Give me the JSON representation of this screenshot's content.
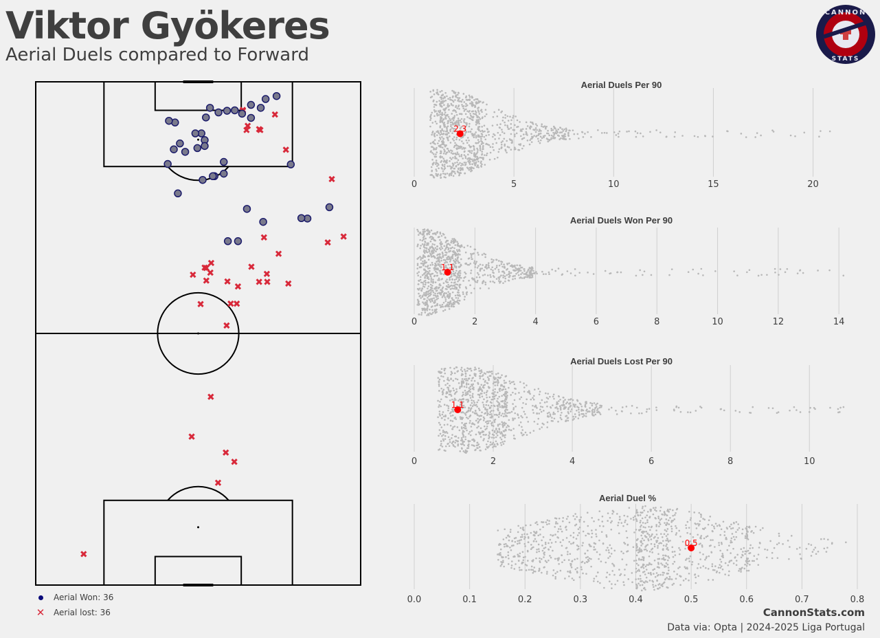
{
  "header": {
    "title": "Viktor Gyökeres",
    "subtitle": "Aerial Duels compared to Forward"
  },
  "logo": {
    "top_text": "CANNON",
    "bottom_text": "STATS",
    "colors": {
      "ring": "#1a1a4a",
      "fill": "#b00010",
      "accent": "#e8e8f0"
    }
  },
  "legend": {
    "won_label": "Aerial Won: 36",
    "lost_label": "Aerial lost: 36",
    "won_icon": "circle-icon",
    "lost_icon": "cross-icon"
  },
  "footer": {
    "site": "CannonStats.com",
    "source": "Data via: Opta | 2024-2025 Liga Portugal"
  },
  "colors": {
    "won": "#7a7a8c",
    "won_edge": "#1a1a6a",
    "lost": "#d8293a",
    "highlight": "#ff0000",
    "swarm": "#b8b8b8"
  },
  "chart_data": [
    {
      "type": "scatter",
      "title": "",
      "pitch_length": 120,
      "pitch_width": 80,
      "series": [
        {
          "name": "Aerial Won",
          "marker": "circle",
          "points": [
            [
              3.4,
              59.3
            ],
            [
              4.1,
              56.6
            ],
            [
              6.2,
              55.4
            ],
            [
              5.5,
              53.0
            ],
            [
              6.8,
              49.0
            ],
            [
              7.6,
              50.8
            ],
            [
              8.6,
              53.0
            ],
            [
              6.9,
              47.1
            ],
            [
              7.3,
              45.0
            ],
            [
              6.2,
              42.9
            ],
            [
              8.5,
              41.9
            ],
            [
              9.7,
              34.3
            ],
            [
              9.3,
              32.8
            ],
            [
              19.6,
              32.5
            ],
            [
              16.7,
              36.8
            ],
            [
              15.8,
              39.8
            ],
            [
              12.3,
              40.8
            ],
            [
              12.3,
              39.3
            ],
            [
              13.9,
              41.6
            ],
            [
              15.3,
              41.6
            ],
            [
              14.7,
              35.5
            ],
            [
              16.1,
              34.0
            ],
            [
              26.6,
              35.0
            ],
            [
              23.4,
              41.1
            ],
            [
              22.5,
              44.0
            ],
            [
              21.9,
              46.3
            ],
            [
              22.5,
              43.6
            ],
            [
              19.1,
              46.3
            ],
            [
              38.0,
              49.8
            ],
            [
              38.0,
              47.3
            ],
            [
              30.3,
              52.0
            ],
            [
              33.4,
              56.0
            ],
            [
              32.6,
              66.9
            ],
            [
              32.5,
              65.4
            ],
            [
              29.9,
              72.3
            ],
            [
              19.7,
              62.8
            ]
          ]
        },
        {
          "name": "Aerial lost",
          "marker": "cross",
          "points": [
            [
              10.5,
              52.2
            ],
            [
              11.3,
              55.0
            ],
            [
              7.8,
              58.9
            ],
            [
              6.9,
              51.0
            ],
            [
              6.7,
              51.0
            ],
            [
              11.5,
              51.9
            ],
            [
              11.5,
              55.3
            ],
            [
              16.2,
              61.6
            ],
            [
              23.2,
              72.9
            ],
            [
              38.3,
              71.9
            ],
            [
              37.1,
              56.2
            ],
            [
              36.9,
              75.8
            ],
            [
              41.0,
              59.8
            ],
            [
              45.8,
              56.9
            ],
            [
              48.1,
              62.2
            ],
            [
              47.7,
              57.0
            ],
            [
              47.7,
              55.0
            ],
            [
              44.1,
              53.1
            ],
            [
              43.2,
              43.2
            ],
            [
              44.4,
              42.0
            ],
            [
              45.5,
              43.0
            ],
            [
              47.4,
              42.0
            ],
            [
              44.3,
              41.6
            ],
            [
              46.0,
              38.7
            ],
            [
              47.6,
              47.2
            ],
            [
              48.8,
              49.8
            ],
            [
              52.9,
              49.5
            ],
            [
              53.0,
              40.6
            ],
            [
              52.9,
              48.0
            ],
            [
              58.1,
              47.0
            ],
            [
              75.1,
              43.1
            ],
            [
              84.6,
              38.4
            ],
            [
              88.4,
              46.8
            ],
            [
              90.6,
              48.9
            ],
            [
              95.6,
              44.9
            ],
            [
              112.6,
              11.8
            ]
          ]
        }
      ]
    },
    {
      "type": "scatter",
      "title": "Aerial Duels Per 90",
      "xlim": [
        0,
        21.6
      ],
      "xticks": [
        "0",
        "5",
        "10",
        "15",
        "20"
      ],
      "xtick_values": [
        0,
        5,
        10,
        15,
        20
      ],
      "distribution": {
        "mode": 1.3,
        "q10": 0.8,
        "q90": 7.5,
        "max": 21.6,
        "count": 3200
      },
      "player": {
        "value": 2.3,
        "label": "2.3"
      }
    },
    {
      "type": "scatter",
      "title": "Aerial Duels Won Per 90",
      "xlim": [
        0,
        14.2
      ],
      "xticks": [
        "0",
        "2",
        "4",
        "6",
        "8",
        "10",
        "12",
        "14"
      ],
      "xtick_values": [
        0,
        2,
        4,
        6,
        8,
        10,
        12,
        14
      ],
      "distribution": {
        "mode": 0.3,
        "q10": 0.1,
        "q90": 3.8,
        "max": 14.2,
        "count": 3200
      },
      "player": {
        "value": 1.1,
        "label": "1.1"
      }
    },
    {
      "type": "scatter",
      "title": "Aerial Duels Lost Per 90",
      "xlim": [
        0,
        10.9
      ],
      "xticks": [
        "0",
        "2",
        "4",
        "6",
        "8",
        "10"
      ],
      "xtick_values": [
        0,
        2,
        4,
        6,
        8,
        10
      ],
      "distribution": {
        "mode": 1.2,
        "q10": 0.6,
        "q90": 4.5,
        "max": 10.9,
        "count": 3200
      },
      "player": {
        "value": 1.1,
        "label": "1.1"
      }
    },
    {
      "type": "scatter",
      "title": "Aerial Duel %",
      "xlim": [
        0,
        0.8
      ],
      "xticks": [
        "0.0",
        "0.1",
        "0.2",
        "0.3",
        "0.4",
        "0.5",
        "0.6",
        "0.7",
        "0.8"
      ],
      "xtick_values": [
        0,
        0.1,
        0.2,
        0.3,
        0.4,
        0.5,
        0.6,
        0.7,
        0.8
      ],
      "distribution": {
        "mode": 0.4,
        "q10": 0.15,
        "q90": 0.6,
        "max": 0.78,
        "count": 3200
      },
      "player": {
        "value": 0.5,
        "label": "0.5"
      }
    }
  ]
}
